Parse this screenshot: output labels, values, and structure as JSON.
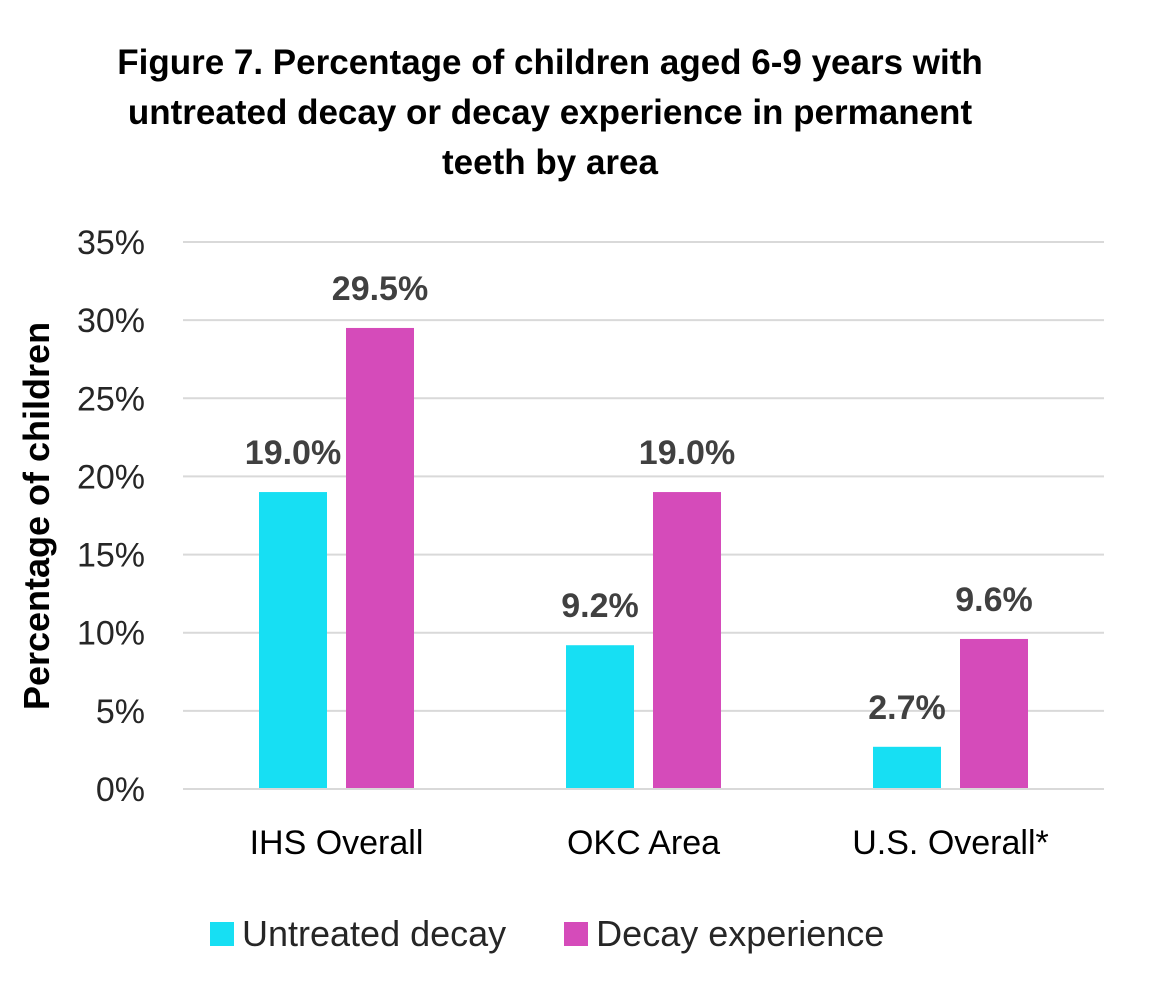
{
  "chart_data": {
    "type": "bar",
    "title_lines": [
      "Figure 7. Percentage of children aged 6-9 years with",
      "untreated decay or decay experience in permanent",
      "teeth by area"
    ],
    "xlabel": "",
    "ylabel": "Percentage of children",
    "categories": [
      "IHS Overall",
      "OKC Area",
      "U.S. Overall*"
    ],
    "series": [
      {
        "name": "Untreated decay",
        "color": "#17DFF3",
        "values": [
          19.0,
          9.2,
          2.7
        ],
        "labels": [
          "19.0%",
          "9.2%",
          "2.7%"
        ]
      },
      {
        "name": "Decay experience",
        "color": "#D54BBA",
        "values": [
          29.5,
          19.0,
          9.6
        ],
        "labels": [
          "29.5%",
          "19.0%",
          "9.6%"
        ]
      }
    ],
    "ylim": [
      0,
      35
    ],
    "yticks": [
      0,
      5,
      10,
      15,
      20,
      25,
      30,
      35
    ],
    "ytick_labels": [
      "0%",
      "5%",
      "10%",
      "15%",
      "20%",
      "25%",
      "30%",
      "35%"
    ],
    "grid": true,
    "legend_position": "bottom"
  }
}
